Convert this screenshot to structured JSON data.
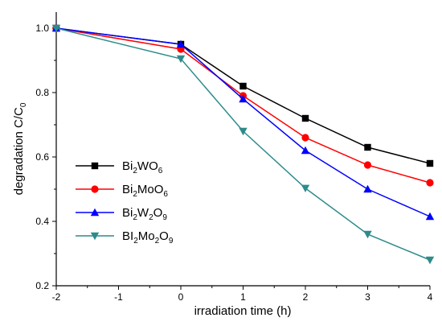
{
  "chart_data": {
    "type": "line",
    "xlabel": "irradiation time (h)",
    "ylabel": {
      "main": "degradation C/C",
      "sub": "0"
    },
    "xlim": [
      -2,
      4
    ],
    "ylim": [
      0.2,
      1.05
    ],
    "xticks": [
      -2,
      -1,
      0,
      1,
      2,
      3,
      4
    ],
    "yticks": [
      0.2,
      0.4,
      0.6,
      0.8,
      1.0
    ],
    "ytick_labels": [
      "0.2",
      "0.4",
      "0.6",
      "0.8",
      "1.0"
    ],
    "grid": false,
    "legend_position": "bottom-left",
    "x": [
      -2,
      0,
      1,
      2,
      3,
      4
    ],
    "series": [
      {
        "name": "Bi2WO6",
        "name_parts": [
          [
            "Bi",
            false
          ],
          [
            "2",
            true
          ],
          [
            "WO",
            false
          ],
          [
            "6",
            true
          ]
        ],
        "color": "#000000",
        "marker": "square",
        "values": [
          1.0,
          0.95,
          0.82,
          0.72,
          0.63,
          0.58
        ]
      },
      {
        "name": "Bi2MoO6",
        "name_parts": [
          [
            "Bi",
            false
          ],
          [
            "2",
            true
          ],
          [
            "MoO",
            false
          ],
          [
            "6",
            true
          ]
        ],
        "color": "#ff0000",
        "marker": "circle",
        "values": [
          1.0,
          0.935,
          0.79,
          0.66,
          0.575,
          0.52
        ]
      },
      {
        "name": "Bi2W2O9",
        "name_parts": [
          [
            "Bi",
            false
          ],
          [
            "2",
            true
          ],
          [
            "W",
            false
          ],
          [
            "2",
            true
          ],
          [
            "O",
            false
          ],
          [
            "9",
            true
          ]
        ],
        "color": "#0000ff",
        "marker": "triangle-up",
        "values": [
          1.0,
          0.95,
          0.78,
          0.62,
          0.5,
          0.415
        ]
      },
      {
        "name": "BI2Mo2O9",
        "name_parts": [
          [
            "BI",
            false
          ],
          [
            "2",
            true
          ],
          [
            "Mo",
            false
          ],
          [
            "2",
            true
          ],
          [
            "O",
            false
          ],
          [
            "9",
            true
          ]
        ],
        "color": "#2e8b8b",
        "marker": "triangle-down",
        "values": [
          1.0,
          0.905,
          0.68,
          0.503,
          0.36,
          0.28
        ]
      }
    ]
  }
}
